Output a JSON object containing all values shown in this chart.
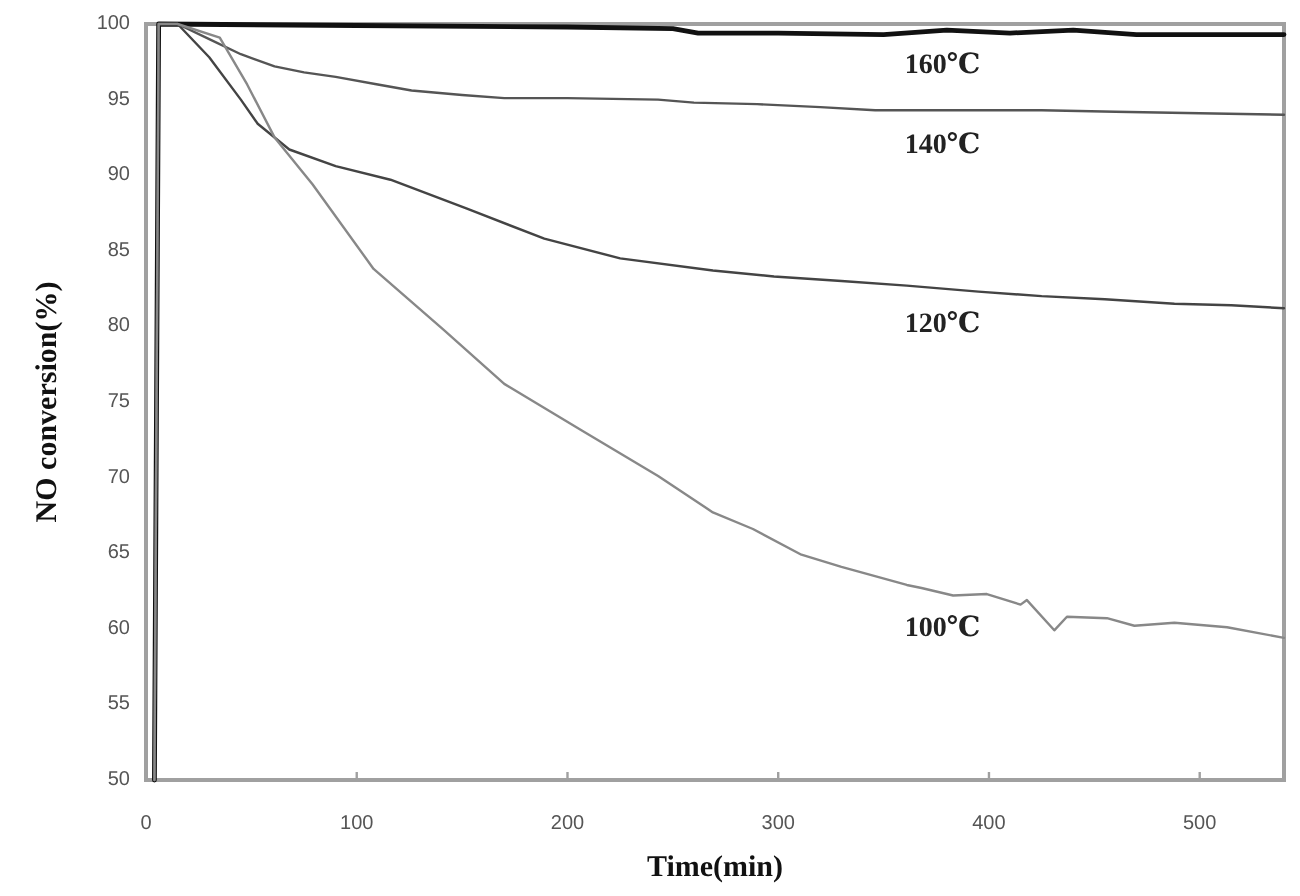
{
  "chart_data": {
    "type": "line",
    "xlabel": "Time(min)",
    "ylabel": "NO conversion(%)",
    "xlim": [
      0,
      540
    ],
    "xticks": [
      0,
      100,
      200,
      300,
      400,
      500
    ],
    "ylim": [
      50,
      100
    ],
    "yticks": [
      50,
      55,
      60,
      65,
      70,
      75,
      80,
      85,
      90,
      95,
      100
    ],
    "line_style": "solid",
    "series": [
      {
        "name": "160℃",
        "color": "#111111",
        "x": [
          4,
          6,
          100,
          200,
          250,
          262,
          300,
          350,
          380,
          410,
          440,
          470,
          540
        ],
        "values": [
          50,
          100,
          99.9,
          99.8,
          99.7,
          99.4,
          99.4,
          99.3,
          99.6,
          99.4,
          99.6,
          99.3,
          99.3
        ]
      },
      {
        "name": "140℃",
        "color": "#555555",
        "x": [
          4,
          6,
          15,
          30,
          45,
          61,
          75,
          90,
          110,
          126,
          150,
          170,
          200,
          243,
          260,
          290,
          320,
          346,
          380,
          425,
          460,
          500,
          540
        ],
        "values": [
          50,
          100,
          100,
          99.0,
          98.0,
          97.2,
          96.8,
          96.5,
          96.0,
          95.6,
          95.3,
          95.1,
          95.1,
          95.0,
          94.8,
          94.7,
          94.5,
          94.3,
          94.3,
          94.3,
          94.2,
          94.1,
          94.0
        ]
      },
      {
        "name": "120℃",
        "color": "#444444",
        "x": [
          4,
          6,
          15,
          30,
          45,
          53,
          68,
          90,
          116,
          152,
          189,
          225,
          269,
          298,
          330,
          361,
          395,
          425,
          455,
          488,
          515,
          540
        ],
        "values": [
          50,
          100,
          100,
          97.8,
          95.0,
          93.4,
          91.7,
          90.6,
          89.7,
          87.8,
          85.8,
          84.5,
          83.7,
          83.3,
          83.0,
          82.7,
          82.3,
          82.0,
          81.8,
          81.5,
          81.4,
          81.2
        ]
      },
      {
        "name": "100℃",
        "color": "#888888",
        "x": [
          4,
          6,
          15,
          35,
          48,
          61,
          79,
          108,
          141,
          170,
          207,
          243,
          269,
          288,
          311,
          330,
          361,
          368,
          383,
          399,
          415,
          418,
          431,
          437,
          456,
          469,
          488,
          513,
          540
        ],
        "values": [
          50,
          100,
          100,
          99.1,
          96.0,
          92.5,
          89.4,
          83.8,
          79.8,
          76.2,
          73.1,
          70.1,
          67.7,
          66.6,
          64.9,
          64.1,
          62.9,
          62.7,
          62.2,
          62.3,
          61.6,
          61.9,
          59.9,
          60.8,
          60.7,
          60.2,
          60.4,
          60.1,
          59.4
        ]
      }
    ]
  }
}
